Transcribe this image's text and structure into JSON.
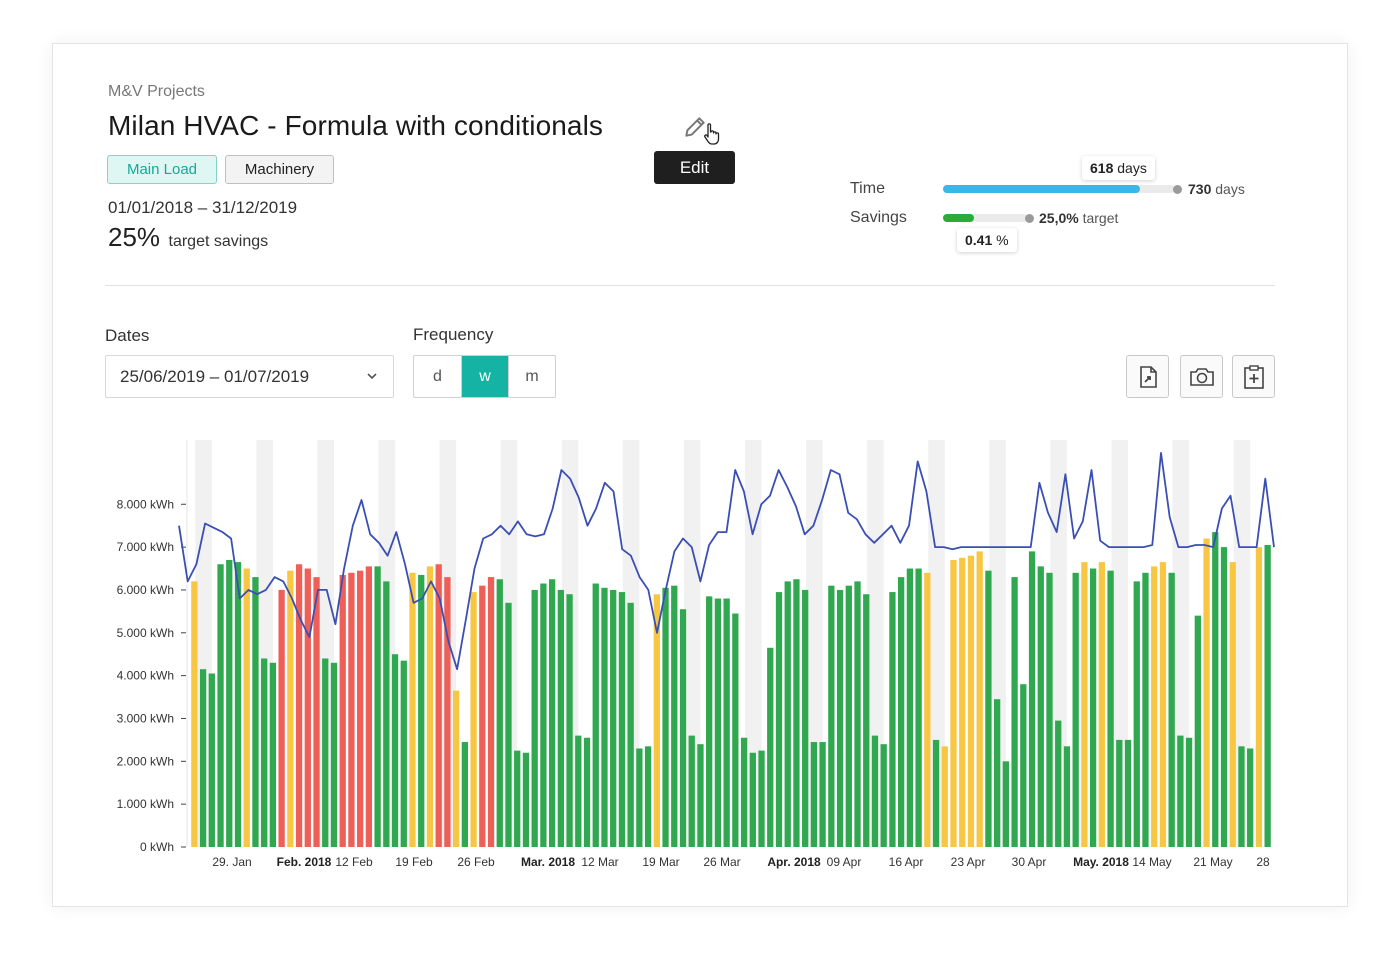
{
  "breadcrumb": "M&V Projects",
  "title": "Milan HVAC - Formula with conditionals",
  "tooltip": "Edit",
  "tags": [
    "Main Load",
    "Machinery"
  ],
  "date_range": "01/01/2018 – 31/12/2019",
  "target": {
    "value": "25%",
    "label": "target savings"
  },
  "kpis": {
    "time": {
      "label": "Time",
      "elapsed_value": "618",
      "elapsed_unit": "days",
      "total_value": "730",
      "total_unit": "days",
      "progress": 0.847,
      "color": "#3cb6e6"
    },
    "savings": {
      "label": "Savings",
      "current_value": "0.41",
      "current_unit": "%",
      "target_value": "25,0%",
      "target_unit": "target",
      "progress": 0.36,
      "color": "#2bab3a"
    }
  },
  "dates_filter": {
    "label": "Dates",
    "value": "25/06/2019 – 01/07/2019"
  },
  "frequency": {
    "label": "Frequency",
    "options": [
      "d",
      "w",
      "m"
    ],
    "selected": "w"
  },
  "toolbar": {
    "icons": [
      "export-pdf-icon",
      "camera-icon",
      "clipboard-add-icon"
    ]
  },
  "colors": {
    "accent": "#14b3a3",
    "green": "#2fa84f",
    "yellow": "#f7c744",
    "red": "#ee5f57",
    "line": "#3a4fb4"
  },
  "chart_data": {
    "type": "bar",
    "y_unit": "kWh",
    "ylim": [
      0,
      8000
    ],
    "y_ticks": [
      "0 kWh",
      "1.000 kWh",
      "2.000 kWh",
      "3.000 kWh",
      "4.000 kWh",
      "5.000 kWh",
      "6.000 kWh",
      "7.000 kWh",
      "8.000 kWh"
    ],
    "x_ticks": [
      {
        "label": "29. Jan",
        "bold": false
      },
      {
        "label": "Feb. 2018",
        "bold": true
      },
      {
        "label": "12 Feb",
        "bold": false
      },
      {
        "label": "19 Feb",
        "bold": false
      },
      {
        "label": "26 Feb",
        "bold": false
      },
      {
        "label": "Mar. 2018",
        "bold": true
      },
      {
        "label": "12 Mar",
        "bold": false
      },
      {
        "label": "19 Mar",
        "bold": false
      },
      {
        "label": "26 Mar",
        "bold": false
      },
      {
        "label": "Apr. 2018",
        "bold": true
      },
      {
        "label": "09 Apr",
        "bold": false
      },
      {
        "label": "16 Apr",
        "bold": false
      },
      {
        "label": "23 Apr",
        "bold": false
      },
      {
        "label": "30 Apr",
        "bold": false
      },
      {
        "label": "May. 2018",
        "bold": true
      },
      {
        "label": "14 May",
        "bold": false
      },
      {
        "label": "21 May",
        "bold": false
      },
      {
        "label": "28",
        "bold": false
      }
    ],
    "bars": [
      {
        "v": 6200,
        "c": "y"
      },
      {
        "v": 4150,
        "c": "g"
      },
      {
        "v": 4050,
        "c": "g"
      },
      {
        "v": 6600,
        "c": "g"
      },
      {
        "v": 6700,
        "c": "g"
      },
      {
        "v": 6650,
        "c": "g"
      },
      {
        "v": 6500,
        "c": "y"
      },
      {
        "v": 6300,
        "c": "g"
      },
      {
        "v": 4400,
        "c": "g"
      },
      {
        "v": 4300,
        "c": "g"
      },
      {
        "v": 6000,
        "c": "r"
      },
      {
        "v": 6450,
        "c": "y"
      },
      {
        "v": 6600,
        "c": "r"
      },
      {
        "v": 6500,
        "c": "r"
      },
      {
        "v": 6300,
        "c": "r"
      },
      {
        "v": 4400,
        "c": "g"
      },
      {
        "v": 4300,
        "c": "g"
      },
      {
        "v": 6350,
        "c": "r"
      },
      {
        "v": 6400,
        "c": "r"
      },
      {
        "v": 6450,
        "c": "r"
      },
      {
        "v": 6550,
        "c": "r"
      },
      {
        "v": 6550,
        "c": "g"
      },
      {
        "v": 6200,
        "c": "g"
      },
      {
        "v": 4500,
        "c": "g"
      },
      {
        "v": 4350,
        "c": "g"
      },
      {
        "v": 6400,
        "c": "y"
      },
      {
        "v": 6350,
        "c": "g"
      },
      {
        "v": 6550,
        "c": "y"
      },
      {
        "v": 6600,
        "c": "r"
      },
      {
        "v": 6300,
        "c": "r"
      },
      {
        "v": 3650,
        "c": "y"
      },
      {
        "v": 2450,
        "c": "g"
      },
      {
        "v": 5950,
        "c": "y"
      },
      {
        "v": 6100,
        "c": "r"
      },
      {
        "v": 6300,
        "c": "r"
      },
      {
        "v": 6250,
        "c": "g"
      },
      {
        "v": 5700,
        "c": "g"
      },
      {
        "v": 2250,
        "c": "g"
      },
      {
        "v": 2200,
        "c": "g"
      },
      {
        "v": 6000,
        "c": "g"
      },
      {
        "v": 6150,
        "c": "g"
      },
      {
        "v": 6250,
        "c": "g"
      },
      {
        "v": 6000,
        "c": "g"
      },
      {
        "v": 5900,
        "c": "g"
      },
      {
        "v": 2600,
        "c": "g"
      },
      {
        "v": 2550,
        "c": "g"
      },
      {
        "v": 6150,
        "c": "g"
      },
      {
        "v": 6050,
        "c": "g"
      },
      {
        "v": 6000,
        "c": "g"
      },
      {
        "v": 5950,
        "c": "g"
      },
      {
        "v": 5700,
        "c": "g"
      },
      {
        "v": 2300,
        "c": "g"
      },
      {
        "v": 2350,
        "c": "g"
      },
      {
        "v": 5900,
        "c": "y"
      },
      {
        "v": 6050,
        "c": "g"
      },
      {
        "v": 6100,
        "c": "g"
      },
      {
        "v": 5550,
        "c": "g"
      },
      {
        "v": 2600,
        "c": "g"
      },
      {
        "v": 2400,
        "c": "g"
      },
      {
        "v": 5850,
        "c": "g"
      },
      {
        "v": 5800,
        "c": "g"
      },
      {
        "v": 5800,
        "c": "g"
      },
      {
        "v": 5450,
        "c": "g"
      },
      {
        "v": 2550,
        "c": "g"
      },
      {
        "v": 2200,
        "c": "g"
      },
      {
        "v": 2250,
        "c": "g"
      },
      {
        "v": 4650,
        "c": "g"
      },
      {
        "v": 5950,
        "c": "g"
      },
      {
        "v": 6200,
        "c": "g"
      },
      {
        "v": 6250,
        "c": "g"
      },
      {
        "v": 6000,
        "c": "g"
      },
      {
        "v": 2450,
        "c": "g"
      },
      {
        "v": 2450,
        "c": "g"
      },
      {
        "v": 6100,
        "c": "g"
      },
      {
        "v": 6000,
        "c": "g"
      },
      {
        "v": 6100,
        "c": "g"
      },
      {
        "v": 6200,
        "c": "g"
      },
      {
        "v": 5900,
        "c": "g"
      },
      {
        "v": 2600,
        "c": "g"
      },
      {
        "v": 2400,
        "c": "g"
      },
      {
        "v": 5950,
        "c": "g"
      },
      {
        "v": 6300,
        "c": "g"
      },
      {
        "v": 6500,
        "c": "g"
      },
      {
        "v": 6500,
        "c": "g"
      },
      {
        "v": 6400,
        "c": "y"
      },
      {
        "v": 2500,
        "c": "g"
      },
      {
        "v": 2350,
        "c": "y"
      },
      {
        "v": 6700,
        "c": "y"
      },
      {
        "v": 6750,
        "c": "y"
      },
      {
        "v": 6800,
        "c": "y"
      },
      {
        "v": 6900,
        "c": "y"
      },
      {
        "v": 6450,
        "c": "g"
      },
      {
        "v": 3450,
        "c": "g"
      },
      {
        "v": 2000,
        "c": "g"
      },
      {
        "v": 6300,
        "c": "g"
      },
      {
        "v": 3800,
        "c": "g"
      },
      {
        "v": 6900,
        "c": "g"
      },
      {
        "v": 6550,
        "c": "g"
      },
      {
        "v": 6400,
        "c": "g"
      },
      {
        "v": 2950,
        "c": "g"
      },
      {
        "v": 2350,
        "c": "g"
      },
      {
        "v": 6400,
        "c": "g"
      },
      {
        "v": 6650,
        "c": "y"
      },
      {
        "v": 6500,
        "c": "g"
      },
      {
        "v": 6650,
        "c": "y"
      },
      {
        "v": 6450,
        "c": "g"
      },
      {
        "v": 2500,
        "c": "g"
      },
      {
        "v": 2500,
        "c": "g"
      },
      {
        "v": 6200,
        "c": "g"
      },
      {
        "v": 6400,
        "c": "g"
      },
      {
        "v": 6550,
        "c": "y"
      },
      {
        "v": 6650,
        "c": "y"
      },
      {
        "v": 6400,
        "c": "g"
      },
      {
        "v": 2600,
        "c": "g"
      },
      {
        "v": 2550,
        "c": "g"
      },
      {
        "v": 5400,
        "c": "g"
      },
      {
        "v": 7200,
        "c": "y"
      },
      {
        "v": 7350,
        "c": "g"
      },
      {
        "v": 7000,
        "c": "g"
      },
      {
        "v": 6650,
        "c": "y"
      },
      {
        "v": 2350,
        "c": "g"
      },
      {
        "v": 2300,
        "c": "g"
      },
      {
        "v": 7000,
        "c": "y"
      },
      {
        "v": 7050,
        "c": "g"
      }
    ],
    "line": [
      7500,
      6200,
      6600,
      7550,
      7450,
      7350,
      7200,
      5800,
      6000,
      5900,
      6000,
      6300,
      6200,
      5800,
      5300,
      4900,
      6000,
      6000,
      5200,
      6500,
      7500,
      8100,
      7300,
      7100,
      6800,
      7350,
      6600,
      5700,
      5800,
      6200,
      5800,
      4800,
      4150,
      5300,
      6500,
      7200,
      7300,
      7500,
      7300,
      7600,
      7300,
      7250,
      7300,
      7900,
      8800,
      8600,
      8150,
      7500,
      7900,
      8500,
      8300,
      6950,
      6800,
      6300,
      6000,
      5000,
      6000,
      6900,
      7200,
      7000,
      6200,
      7050,
      7350,
      7350,
      8800,
      8300,
      7300,
      8000,
      8200,
      8800,
      8400,
      7950,
      7300,
      7500,
      8100,
      8800,
      8700,
      7800,
      7650,
      7300,
      7100,
      7300,
      7500,
      7100,
      7500,
      9000,
      8300,
      7000,
      7000,
      6950,
      7000,
      7000,
      7000,
      7000,
      7000,
      7000,
      7000,
      7000,
      7000,
      8500,
      7800,
      7350,
      8700,
      7200,
      7600,
      8800,
      7150,
      7000,
      7000,
      7000,
      7000,
      7000,
      7050,
      9200,
      7700,
      7000,
      7000,
      7050,
      7050,
      7000,
      7900,
      8200,
      7000,
      7000,
      7000,
      8600,
      7000
    ]
  }
}
